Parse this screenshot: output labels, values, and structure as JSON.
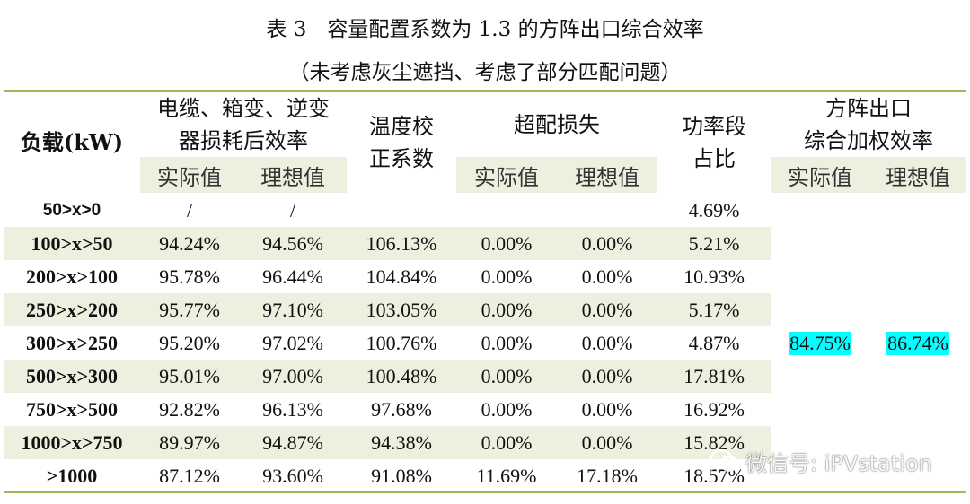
{
  "title": "表 3　容量配置系数为 1.3 的方阵出口综合效率",
  "subtitle": "（未考虑灰尘遮挡、考虑了部分匹配问题）",
  "headers": {
    "load": "负载(kW)",
    "efficiency_line1": "电缆、箱变、逆变",
    "efficiency_line2": "器损耗后效率",
    "temp_line1": "温度校",
    "temp_line2": "正系数",
    "overload": "超配损失",
    "power_line1": "功率段",
    "power_line2": "占比",
    "weighted_line1": "方阵出口",
    "weighted_line2": "综合加权效率",
    "actual": "实际值",
    "ideal": "理想值"
  },
  "rows": [
    {
      "load": "50>x>0",
      "eff_actual": "/",
      "eff_ideal": "/",
      "temp": "",
      "over_actual": "",
      "over_ideal": "",
      "share": "4.69%"
    },
    {
      "load": "100>x>50",
      "eff_actual": "94.24%",
      "eff_ideal": "94.56%",
      "temp": "106.13%",
      "over_actual": "0.00%",
      "over_ideal": "0.00%",
      "share": "5.21%"
    },
    {
      "load": "200>x>100",
      "eff_actual": "95.78%",
      "eff_ideal": "96.44%",
      "temp": "104.84%",
      "over_actual": "0.00%",
      "over_ideal": "0.00%",
      "share": "10.93%"
    },
    {
      "load": "250>x>200",
      "eff_actual": "95.77%",
      "eff_ideal": "97.10%",
      "temp": "103.05%",
      "over_actual": "0.00%",
      "over_ideal": "0.00%",
      "share": "5.17%"
    },
    {
      "load": "300>x>250",
      "eff_actual": "95.20%",
      "eff_ideal": "97.02%",
      "temp": "100.76%",
      "over_actual": "0.00%",
      "over_ideal": "0.00%",
      "share": "4.87%"
    },
    {
      "load": "500>x>300",
      "eff_actual": "95.01%",
      "eff_ideal": "97.00%",
      "temp": "100.48%",
      "over_actual": "0.00%",
      "over_ideal": "0.00%",
      "share": "17.81%"
    },
    {
      "load": "750>x>500",
      "eff_actual": "92.82%",
      "eff_ideal": "96.13%",
      "temp": "97.68%",
      "over_actual": "0.00%",
      "over_ideal": "0.00%",
      "share": "16.92%"
    },
    {
      "load": "1000>x>750",
      "eff_actual": "89.97%",
      "eff_ideal": "94.87%",
      "temp": "94.38%",
      "over_actual": "0.00%",
      "over_ideal": "0.00%",
      "share": "15.82%"
    },
    {
      "load": ">1000",
      "eff_actual": "87.12%",
      "eff_ideal": "93.60%",
      "temp": "91.08%",
      "over_actual": "11.69%",
      "over_ideal": "17.18%",
      "share": "18.57%"
    }
  ],
  "weighted": {
    "actual": "84.75%",
    "ideal": "86.74%"
  },
  "highlight_color": "#00ffff",
  "band_color": "#ebf1de",
  "rule_color": "#9bbb59",
  "watermark": {
    "icon": "wechat-icon",
    "text": "微信号: iPVstation"
  }
}
